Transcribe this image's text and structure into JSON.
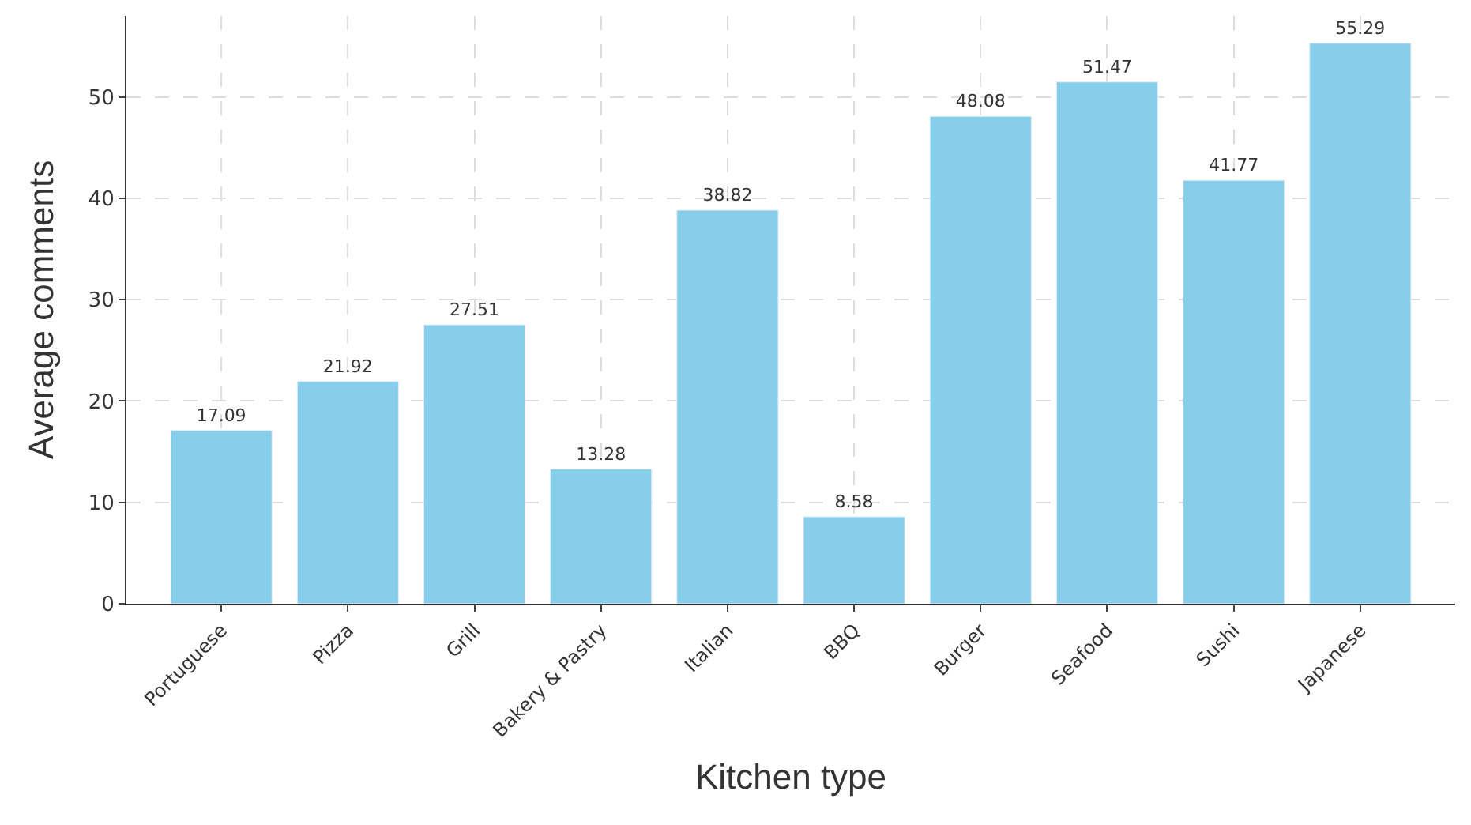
{
  "chart_data": {
    "type": "bar",
    "xlabel": "Kitchen type",
    "ylabel": "Average comments",
    "categories": [
      "Portuguese",
      "Pizza",
      "Grill",
      "Bakery & Pastry",
      "Italian",
      "BBQ",
      "Burger",
      "Seafood",
      "Sushi",
      "Japanese"
    ],
    "values": [
      17.09,
      21.92,
      27.51,
      13.28,
      38.82,
      8.58,
      48.08,
      51.47,
      41.77,
      55.29
    ],
    "color": "#87ceeb",
    "ylim": [
      0,
      58
    ],
    "yticks": [
      0,
      10,
      20,
      30,
      40,
      50
    ],
    "grid": true,
    "data_labels": true
  }
}
